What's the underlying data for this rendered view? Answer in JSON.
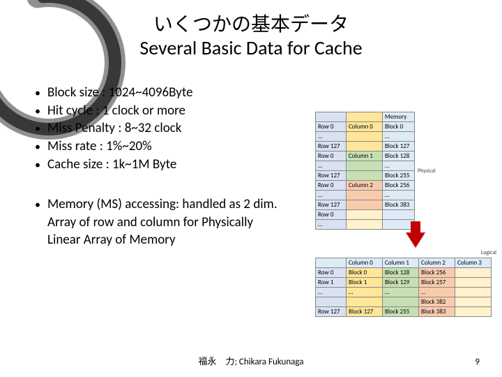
{
  "title_jp": "いくつかの基本データ",
  "title_en": "Several Basic Data for Cache",
  "bullets1": [
    "Block size : 1024~4096Byte",
    "Hit cycle : 1 clock or more",
    "Miss Penalty :  8~32 clock",
    "Miss rate : 1%~20%",
    "Cache size : 1k~1M Byte"
  ],
  "bullets2": [
    "Memory (MS) accessing: handled as 2 dim. Array of row and column for Physically Linear Array of Memory"
  ],
  "phys": {
    "side_physical": "Physical",
    "side_logical": "Logical",
    "mem_header": "Memory",
    "rows": [
      [
        "Row 0",
        "Column 0",
        "Block 0"
      ],
      [
        "…",
        "",
        "…"
      ],
      [
        "Row 127",
        "",
        "Block 127"
      ],
      [
        "Row 0",
        "Column 1",
        "Block 128"
      ],
      [
        "…",
        "",
        "…"
      ],
      [
        "Row 127",
        "",
        "Block 255"
      ],
      [
        "Row 0",
        "Column 2",
        "Block 256"
      ],
      [
        "…",
        "",
        "…"
      ],
      [
        "Row 127",
        "",
        "Block 383"
      ],
      [
        "Row 0",
        "",
        ""
      ],
      [
        "…",
        "",
        ""
      ]
    ],
    "col_classes": [
      "col0",
      "col0",
      "col0",
      "col1",
      "col1",
      "col1",
      "col2",
      "col2",
      "col2",
      "col3",
      "col3"
    ]
  },
  "log": {
    "headers": [
      "",
      "Column 0",
      "Column 1",
      "Column 2",
      "Column 3"
    ],
    "rows": [
      [
        "Row 0",
        "Block 0",
        "Block 128",
        "Block 256",
        ""
      ],
      [
        "Row 1",
        "Block 1",
        "Block 129",
        "Block 257",
        ""
      ],
      [
        "…",
        "…",
        "…",
        "…",
        ""
      ],
      [
        "",
        "",
        "",
        "Block 382",
        ""
      ],
      [
        "Row 127",
        "Block 127",
        "Block 255",
        "Block 383",
        ""
      ]
    ],
    "col_classes": [
      "rowlbl",
      "col0",
      "col1",
      "col2",
      "col3"
    ]
  },
  "footer_author": "福永　力; Chikara Fukunaga",
  "page_number": "9",
  "colors": {
    "brush": "#333333"
  }
}
